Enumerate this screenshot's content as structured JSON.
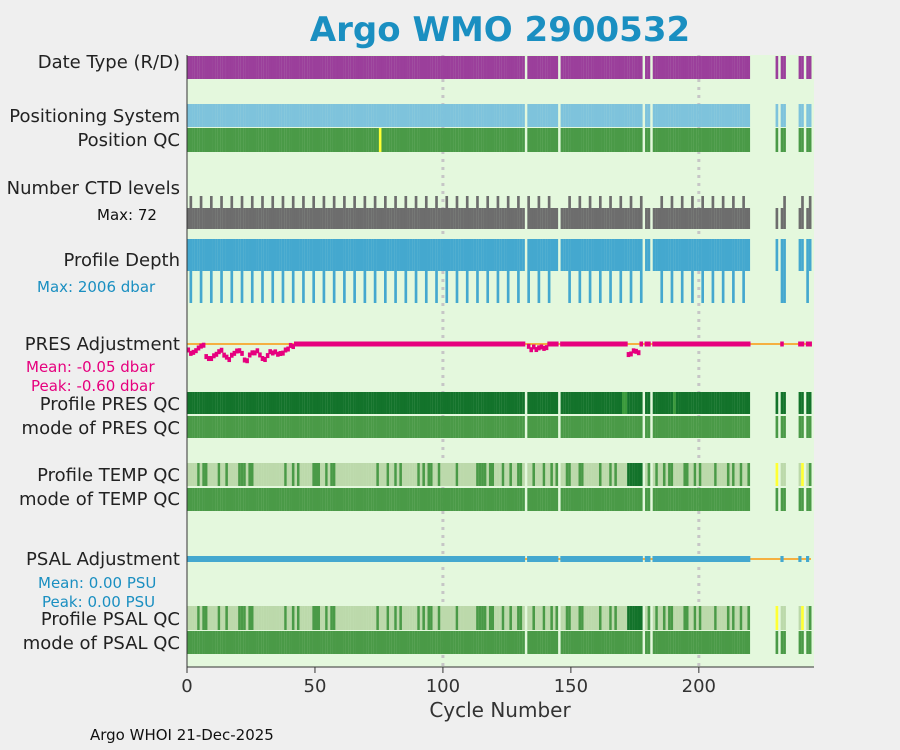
{
  "chart_data": {
    "type": "bar",
    "title": "Argo WMO 2900532",
    "xlabel": "Cycle Number",
    "xlim": [
      0,
      245
    ],
    "xticks": [
      0,
      50,
      100,
      150,
      200
    ],
    "rows": [
      "Date Type (R/D)",
      "Positioning System",
      "Position QC",
      "Number CTD levels",
      "Profile Depth",
      "PRES Adjustment",
      "Profile PRES QC",
      "mode of PRES QC",
      "Profile TEMP QC",
      "mode of TEMP QC",
      "PSAL Adjustment",
      "Profile PSAL QC",
      "mode of PSAL QC"
    ],
    "ctd_levels_max": "Max: 72",
    "profile_depth_max": "Max: 2006 dbar",
    "pres_adjustment": {
      "mean": "Mean: -0.05 dbar",
      "peak": "Peak: -0.60 dbar",
      "mean_value": -0.05,
      "peak_value": -0.6
    },
    "psal_adjustment": {
      "mean": "Mean: 0.00 PSU",
      "peak": "Peak: 0.00 PSU",
      "mean_value": 0.0,
      "peak_value": 0.0
    },
    "missing_cycles": [
      132,
      145,
      178,
      181,
      220,
      221,
      222,
      223,
      224,
      225,
      226,
      227,
      228,
      229,
      231,
      234,
      235,
      236,
      237,
      238,
      241
    ],
    "yellow_position_qc_cycles": [
      75
    ],
    "yellow_qc_cycles": [
      230,
      240
    ]
  },
  "footer": "Argo WHOI 21-Dec-2025",
  "colors": {
    "title": "#1a8fc1",
    "plot_bg": "#e4f8dd",
    "date_type": "#9b3f9b",
    "positioning": "#7ec3dc",
    "qc_good": "#4a9a47",
    "qc_dark": "#13732b",
    "qc_light": "#bcd9ab",
    "qc_yellow": "#ffff33",
    "ctd": "#6d6d6d",
    "depth": "#44a8cf",
    "pres_adj": "#e6007e",
    "psal_adj": "#44a8cf",
    "zero_line": "#f5b041"
  }
}
